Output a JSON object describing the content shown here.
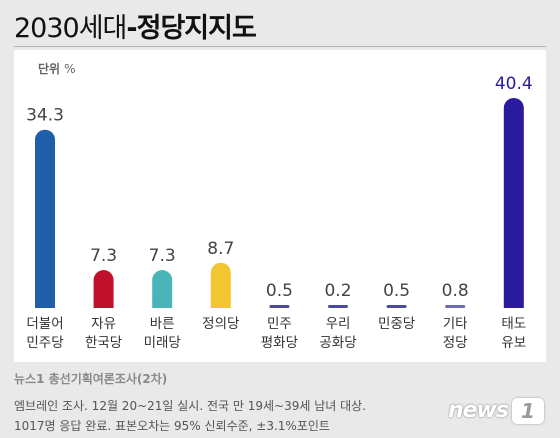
{
  "title": {
    "main": "2030세대",
    "sub": "-정당지지도"
  },
  "unit": {
    "label": "단위",
    "value": "%"
  },
  "chart_data": {
    "type": "bar",
    "categories": [
      "더불어\n민주당",
      "자유\n한국당",
      "바른\n미래당",
      "정의당",
      "민주\n평화당",
      "우리\n공화당",
      "민중당",
      "기타\n정당",
      "태도\n유보"
    ],
    "values": [
      34.3,
      7.3,
      7.3,
      8.7,
      0.5,
      0.2,
      0.5,
      0.8,
      40.4
    ],
    "value_labels": [
      "34.3",
      "7.3",
      "7.3",
      "8.7",
      "0.5",
      "0.2",
      "0.5",
      "0.8",
      "40.4"
    ],
    "colors": [
      "#1f5ea8",
      "#c0102b",
      "#4ab5b8",
      "#f2c531",
      "#4a4a9e",
      "#4a4a9e",
      "#4a4a9e",
      "#6a6ab8",
      "#2a1a9e"
    ],
    "highlight_index": 8,
    "ylim": [
      0,
      40.4
    ],
    "grid": false,
    "legend": "none"
  },
  "footer": {
    "source": "뉴스1 총선기획여론조사(2차)",
    "note1": "엠브레인 조사. 12월 20~21일 실시. 전국 만 19세~39세 남녀 대상.",
    "note2": "1017명 응답 완료. 표본오차는 95% 신뢰수준, ±3.1%포인트"
  },
  "logo": {
    "text": "news",
    "mark": "1"
  }
}
